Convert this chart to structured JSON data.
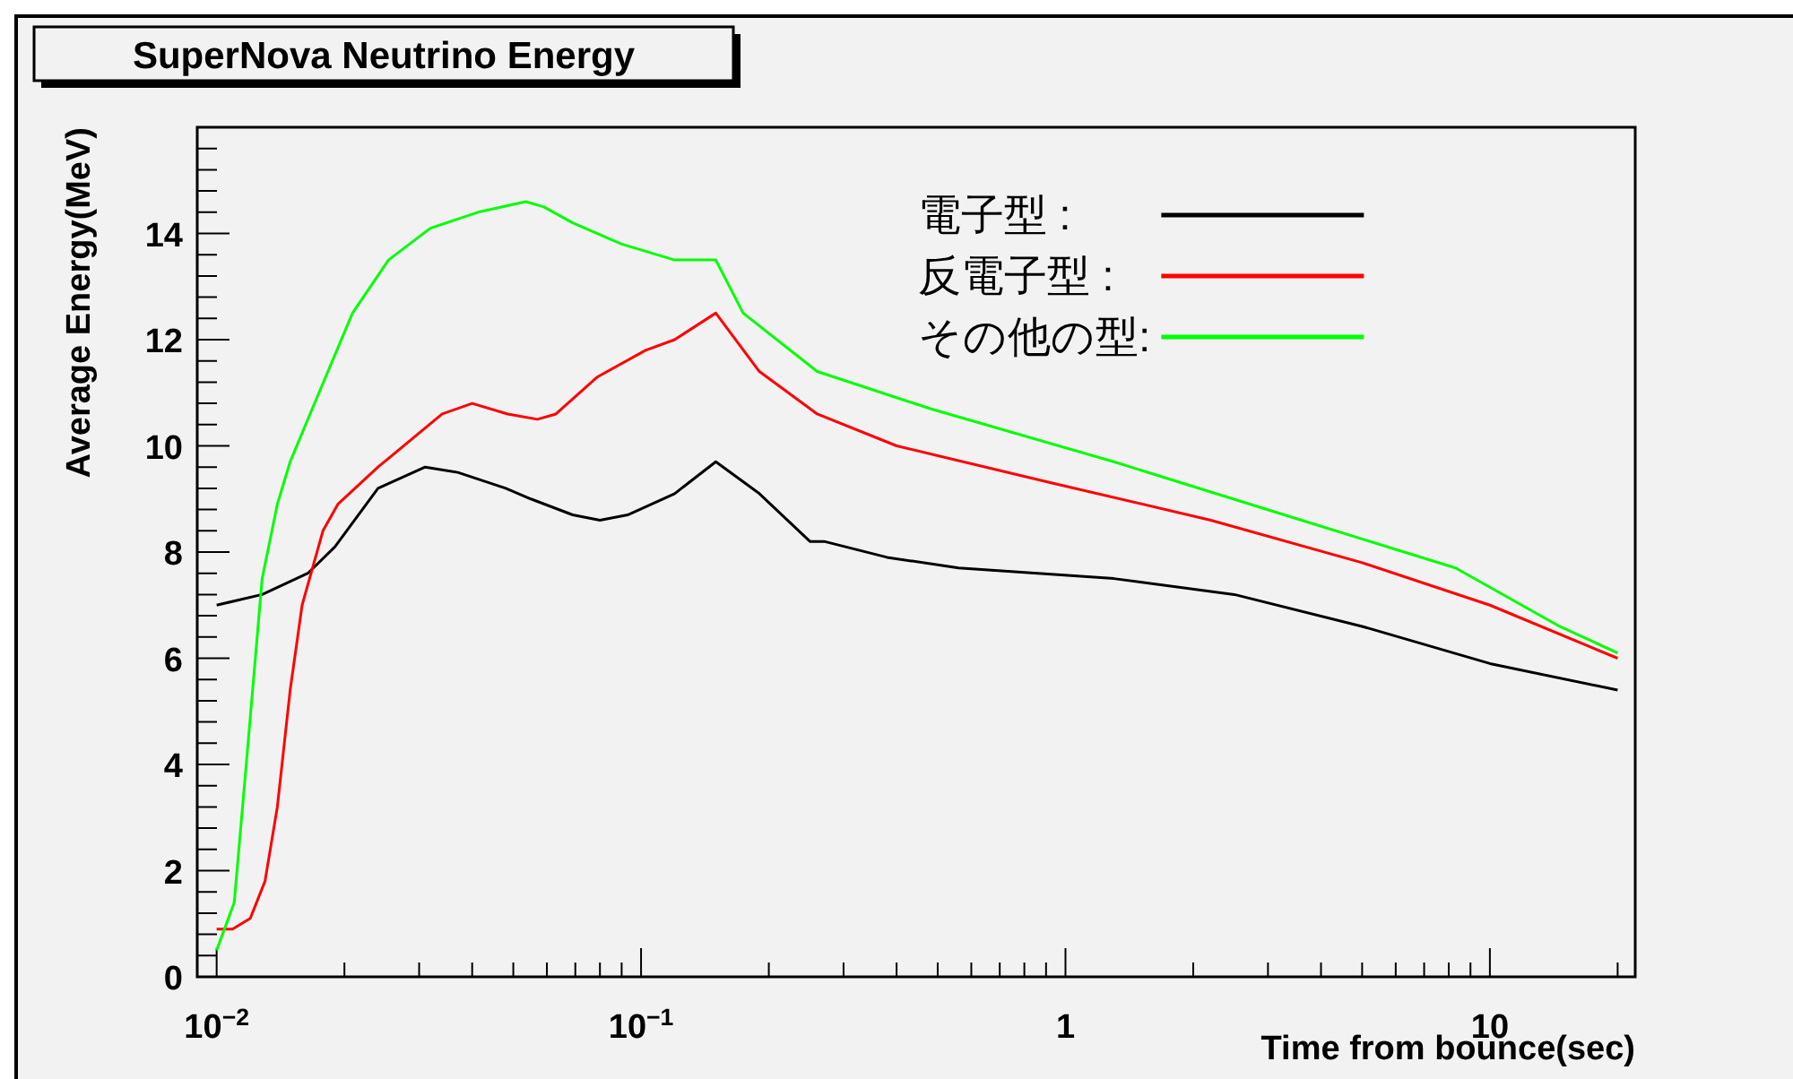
{
  "chart_data": {
    "type": "line",
    "title": "SuperNova Neutrino Energy",
    "xlabel": "Time from bounce(sec)",
    "ylabel": "Average Energy(MeV)",
    "log": "x",
    "xlim": [
      0.009,
      22
    ],
    "ylim": [
      0,
      16
    ],
    "xticks": [
      {
        "value": 0.01,
        "label": "10$^{−2}$"
      },
      {
        "value": 0.1,
        "label": "10$^{−1}$"
      },
      1,
      10
    ],
    "yticks": [
      0,
      2,
      4,
      6,
      8,
      10,
      12,
      14
    ],
    "legend": "top right",
    "grid": false,
    "marker": "none",
    "line_style": "solid",
    "series": [
      {
        "name": "電子型   :",
        "color": "#000000",
        "x": [
          0.01,
          0.0128,
          0.0164,
          0.019,
          0.024,
          0.031,
          0.037,
          0.048,
          0.055,
          0.069,
          0.08,
          0.093,
          0.12,
          0.15,
          0.19,
          0.25,
          0.27,
          0.38,
          0.56,
          1.3,
          2.5,
          5,
          10,
          20
        ],
        "values": [
          7.0,
          7.2,
          7.6,
          8.1,
          9.2,
          9.6,
          9.5,
          9.2,
          9.0,
          8.7,
          8.6,
          8.7,
          9.1,
          9.7,
          9.1,
          8.2,
          8.2,
          7.9,
          7.7,
          7.5,
          7.2,
          6.6,
          5.9,
          5.4
        ]
      },
      {
        "name": "反電子型 :",
        "color": "#ff0000",
        "x": [
          0.01,
          0.0109,
          0.012,
          0.013,
          0.0139,
          0.0149,
          0.0159,
          0.0178,
          0.0193,
          0.024,
          0.034,
          0.04,
          0.0485,
          0.057,
          0.063,
          0.079,
          0.1025,
          0.12,
          0.15,
          0.19,
          0.25,
          0.26,
          0.4,
          0.93,
          2.2,
          5,
          10,
          20
        ],
        "values": [
          0.9,
          0.9,
          1.1,
          1.8,
          3.2,
          5.4,
          7.0,
          8.4,
          8.9,
          9.6,
          10.6,
          10.8,
          10.6,
          10.5,
          10.6,
          11.3,
          11.8,
          12.0,
          12.5,
          11.4,
          10.7,
          10.6,
          10.0,
          9.3,
          8.6,
          7.8,
          7.0,
          6.0
        ]
      },
      {
        "name": "その他の型:",
        "color": "#00ff00",
        "x": [
          0.01,
          0.011,
          0.0118,
          0.0128,
          0.0139,
          0.0149,
          0.0166,
          0.0209,
          0.0254,
          0.0319,
          0.0413,
          0.0535,
          0.059,
          0.069,
          0.09,
          0.12,
          0.15,
          0.174,
          0.26,
          0.48,
          1.3,
          3.6,
          8.3,
          14.6,
          20
        ],
        "values": [
          0.5,
          1.4,
          4.2,
          7.5,
          8.9,
          9.7,
          10.6,
          12.5,
          13.5,
          14.1,
          14.4,
          14.6,
          14.5,
          14.2,
          13.8,
          13.5,
          13.5,
          12.5,
          11.4,
          10.7,
          9.7,
          8.6,
          7.7,
          6.6,
          6.1
        ]
      }
    ]
  }
}
